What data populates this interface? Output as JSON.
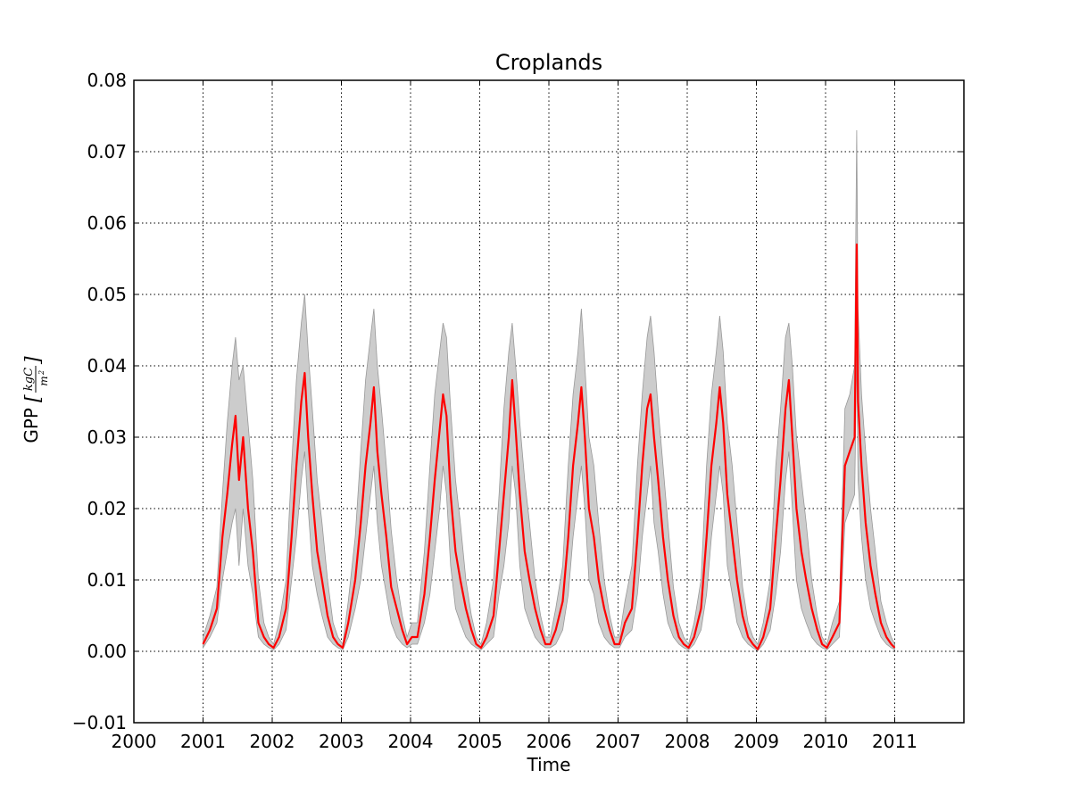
{
  "chart_data": {
    "type": "line",
    "title": "Croplands",
    "xlabel": "Time",
    "ylabel": {
      "text": "GPP",
      "unit_numerator": "kgC",
      "unit_denominator": "m",
      "unit_denominator_exponent": "2"
    },
    "xlim": [
      2000,
      2012
    ],
    "ylim": [
      -0.01,
      0.08
    ],
    "x_ticks": [
      2000,
      2001,
      2002,
      2003,
      2004,
      2005,
      2006,
      2007,
      2008,
      2009,
      2010,
      2011
    ],
    "x_tick_labels": [
      "2000",
      "2001",
      "2002",
      "2003",
      "2004",
      "2005",
      "2006",
      "2007",
      "2008",
      "2009",
      "2010",
      "2011"
    ],
    "y_ticks": [
      -0.01,
      0.0,
      0.01,
      0.02,
      0.03,
      0.04,
      0.05,
      0.06,
      0.07,
      0.08
    ],
    "y_tick_labels": [
      "−0.01",
      "0.00",
      "0.01",
      "0.02",
      "0.03",
      "0.04",
      "0.05",
      "0.06",
      "0.07",
      "0.08"
    ],
    "grid": true,
    "colors": {
      "line": "#ff0000",
      "band": "#cccccc",
      "band_edge": "#999999"
    },
    "series": [
      {
        "type": "line",
        "x": [
          2001.0,
          2001.1,
          2001.2,
          2001.28,
          2001.35,
          2001.42,
          2001.47,
          2001.52,
          2001.58,
          2001.65,
          2001.72,
          2001.8,
          2001.88,
          2001.95,
          2002.02,
          2002.1,
          2002.2,
          2002.28,
          2002.35,
          2002.42,
          2002.47,
          2002.52,
          2002.58,
          2002.65,
          2002.72,
          2002.8,
          2002.88,
          2002.95,
          2003.02,
          2003.1,
          2003.2,
          2003.28,
          2003.35,
          2003.42,
          2003.47,
          2003.52,
          2003.58,
          2003.65,
          2003.72,
          2003.8,
          2003.88,
          2003.95,
          2004.02,
          2004.1,
          2004.2,
          2004.28,
          2004.35,
          2004.42,
          2004.47,
          2004.52,
          2004.58,
          2004.65,
          2004.72,
          2004.8,
          2004.88,
          2004.95,
          2005.02,
          2005.1,
          2005.2,
          2005.28,
          2005.35,
          2005.42,
          2005.47,
          2005.52,
          2005.58,
          2005.65,
          2005.72,
          2005.8,
          2005.88,
          2005.95,
          2006.02,
          2006.1,
          2006.2,
          2006.28,
          2006.35,
          2006.42,
          2006.47,
          2006.52,
          2006.58,
          2006.65,
          2006.72,
          2006.8,
          2006.88,
          2006.95,
          2007.02,
          2007.1,
          2007.2,
          2007.28,
          2007.35,
          2007.42,
          2007.47,
          2007.52,
          2007.58,
          2007.65,
          2007.72,
          2007.8,
          2007.88,
          2007.95,
          2008.02,
          2008.1,
          2008.2,
          2008.28,
          2008.35,
          2008.42,
          2008.47,
          2008.52,
          2008.58,
          2008.65,
          2008.72,
          2008.8,
          2008.88,
          2008.95,
          2009.02,
          2009.1,
          2009.2,
          2009.28,
          2009.35,
          2009.42,
          2009.47,
          2009.52,
          2009.58,
          2009.65,
          2009.72,
          2009.8,
          2009.88,
          2009.95,
          2010.02,
          2010.1,
          2010.2,
          2010.28,
          2010.35,
          2010.42,
          2010.45,
          2010.47,
          2010.52,
          2010.58,
          2010.65,
          2010.72,
          2010.8,
          2010.88,
          2010.95,
          2011.0
        ],
        "y": [
          0.001,
          0.003,
          0.006,
          0.016,
          0.022,
          0.029,
          0.033,
          0.024,
          0.03,
          0.02,
          0.014,
          0.004,
          0.002,
          0.001,
          0.0005,
          0.002,
          0.006,
          0.016,
          0.026,
          0.035,
          0.039,
          0.03,
          0.022,
          0.014,
          0.01,
          0.005,
          0.002,
          0.001,
          0.0005,
          0.004,
          0.01,
          0.018,
          0.026,
          0.032,
          0.037,
          0.028,
          0.022,
          0.016,
          0.009,
          0.006,
          0.003,
          0.001,
          0.002,
          0.002,
          0.008,
          0.016,
          0.024,
          0.031,
          0.036,
          0.033,
          0.022,
          0.014,
          0.01,
          0.006,
          0.003,
          0.001,
          0.0005,
          0.002,
          0.005,
          0.014,
          0.022,
          0.03,
          0.038,
          0.031,
          0.022,
          0.014,
          0.01,
          0.006,
          0.003,
          0.001,
          0.001,
          0.003,
          0.007,
          0.016,
          0.026,
          0.032,
          0.037,
          0.03,
          0.02,
          0.016,
          0.01,
          0.006,
          0.003,
          0.001,
          0.001,
          0.004,
          0.006,
          0.016,
          0.026,
          0.034,
          0.036,
          0.03,
          0.024,
          0.016,
          0.01,
          0.005,
          0.002,
          0.001,
          0.0005,
          0.002,
          0.006,
          0.016,
          0.026,
          0.032,
          0.037,
          0.032,
          0.022,
          0.016,
          0.01,
          0.005,
          0.002,
          0.001,
          0.0003,
          0.002,
          0.006,
          0.016,
          0.024,
          0.034,
          0.038,
          0.03,
          0.02,
          0.014,
          0.01,
          0.006,
          0.003,
          0.001,
          0.0005,
          0.002,
          0.004,
          0.026,
          0.028,
          0.03,
          0.057,
          0.035,
          0.026,
          0.018,
          0.012,
          0.008,
          0.004,
          0.002,
          0.001,
          0.0005
        ],
        "band_upper": [
          0.002,
          0.005,
          0.009,
          0.022,
          0.032,
          0.04,
          0.044,
          0.038,
          0.04,
          0.032,
          0.024,
          0.01,
          0.004,
          0.002,
          0.001,
          0.004,
          0.01,
          0.026,
          0.038,
          0.046,
          0.05,
          0.042,
          0.034,
          0.024,
          0.018,
          0.01,
          0.004,
          0.002,
          0.001,
          0.007,
          0.016,
          0.028,
          0.038,
          0.044,
          0.048,
          0.04,
          0.034,
          0.026,
          0.017,
          0.01,
          0.005,
          0.002,
          0.004,
          0.004,
          0.014,
          0.026,
          0.036,
          0.042,
          0.046,
          0.044,
          0.034,
          0.024,
          0.018,
          0.01,
          0.005,
          0.002,
          0.001,
          0.004,
          0.01,
          0.022,
          0.034,
          0.042,
          0.046,
          0.04,
          0.032,
          0.024,
          0.018,
          0.01,
          0.005,
          0.002,
          0.002,
          0.006,
          0.012,
          0.026,
          0.036,
          0.042,
          0.048,
          0.04,
          0.03,
          0.026,
          0.018,
          0.01,
          0.005,
          0.002,
          0.002,
          0.007,
          0.012,
          0.026,
          0.036,
          0.044,
          0.047,
          0.042,
          0.034,
          0.026,
          0.018,
          0.009,
          0.004,
          0.002,
          0.001,
          0.004,
          0.01,
          0.026,
          0.036,
          0.042,
          0.047,
          0.042,
          0.032,
          0.026,
          0.018,
          0.009,
          0.004,
          0.002,
          0.001,
          0.004,
          0.01,
          0.026,
          0.034,
          0.044,
          0.046,
          0.04,
          0.03,
          0.024,
          0.018,
          0.01,
          0.005,
          0.002,
          0.001,
          0.004,
          0.007,
          0.034,
          0.036,
          0.04,
          0.073,
          0.048,
          0.036,
          0.028,
          0.02,
          0.014,
          0.007,
          0.004,
          0.002,
          0.001
        ],
        "band_lower": [
          0.0005,
          0.002,
          0.004,
          0.01,
          0.014,
          0.018,
          0.02,
          0.012,
          0.02,
          0.012,
          0.008,
          0.002,
          0.001,
          0.0005,
          0.0002,
          0.001,
          0.003,
          0.01,
          0.016,
          0.024,
          0.028,
          0.02,
          0.012,
          0.008,
          0.005,
          0.002,
          0.001,
          0.0005,
          0.0002,
          0.002,
          0.006,
          0.01,
          0.016,
          0.022,
          0.026,
          0.018,
          0.012,
          0.008,
          0.004,
          0.002,
          0.001,
          0.0005,
          0.001,
          0.001,
          0.004,
          0.008,
          0.014,
          0.02,
          0.026,
          0.022,
          0.012,
          0.006,
          0.004,
          0.002,
          0.001,
          0.0005,
          0.0002,
          0.001,
          0.002,
          0.008,
          0.012,
          0.018,
          0.026,
          0.022,
          0.012,
          0.006,
          0.004,
          0.002,
          0.001,
          0.0005,
          0.0005,
          0.001,
          0.003,
          0.008,
          0.016,
          0.022,
          0.026,
          0.02,
          0.01,
          0.008,
          0.004,
          0.002,
          0.001,
          0.0005,
          0.0005,
          0.002,
          0.003,
          0.008,
          0.016,
          0.022,
          0.026,
          0.018,
          0.014,
          0.008,
          0.004,
          0.002,
          0.001,
          0.0005,
          0.0002,
          0.001,
          0.003,
          0.008,
          0.016,
          0.022,
          0.026,
          0.022,
          0.012,
          0.008,
          0.004,
          0.002,
          0.001,
          0.0005,
          0.0001,
          0.001,
          0.003,
          0.008,
          0.014,
          0.024,
          0.028,
          0.02,
          0.01,
          0.006,
          0.004,
          0.002,
          0.001,
          0.0005,
          0.0002,
          0.001,
          0.002,
          0.018,
          0.02,
          0.022,
          0.042,
          0.024,
          0.016,
          0.01,
          0.006,
          0.004,
          0.002,
          0.001,
          0.0005,
          0.0002
        ]
      }
    ]
  }
}
